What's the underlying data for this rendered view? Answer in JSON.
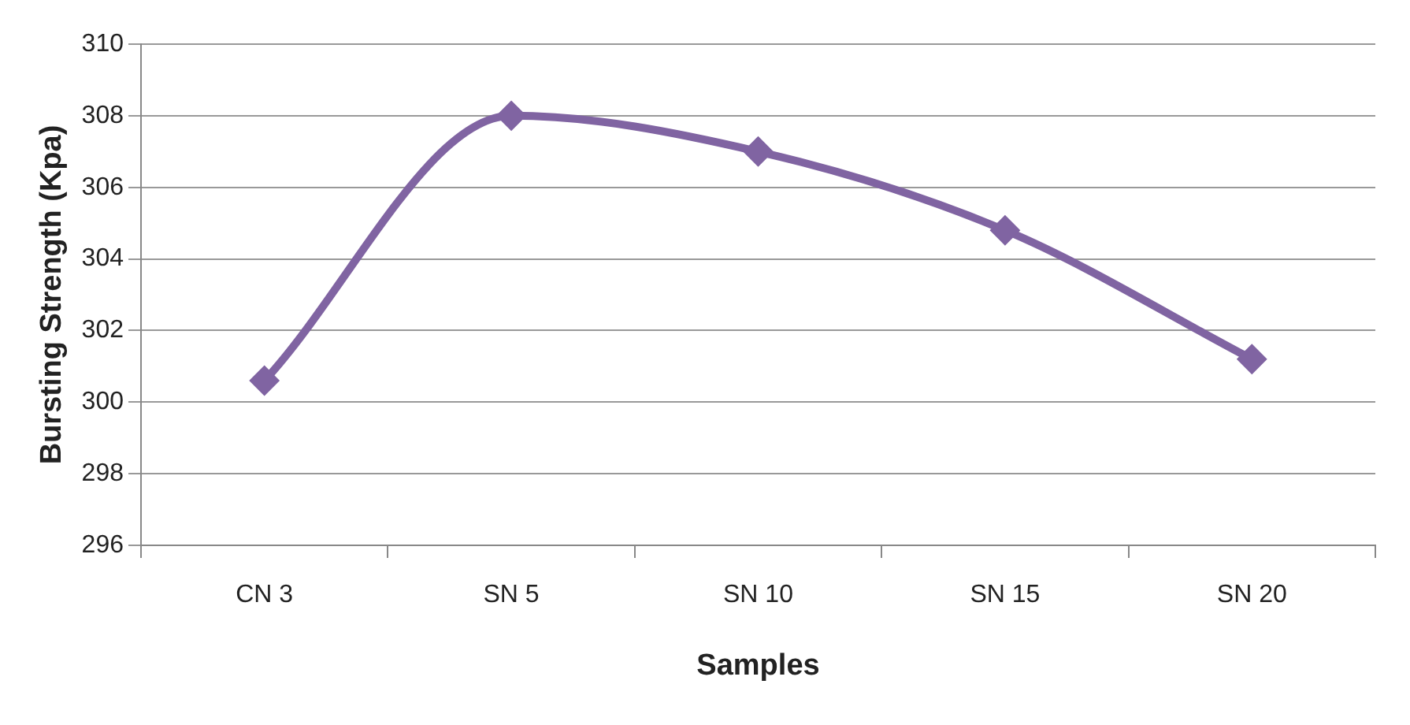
{
  "chart_data": {
    "type": "line",
    "xlabel": "Samples",
    "ylabel": "Bursting Strength (Kpa)",
    "categories": [
      "CN 3",
      "SN 5",
      "SN 10",
      "SN 15",
      "SN 20"
    ],
    "series": [
      {
        "color": "#8064a2",
        "values": [
          300.6,
          308,
          307,
          304.8,
          301.2
        ]
      }
    ],
    "ylim": [
      296,
      310
    ],
    "yticks": [
      296,
      298,
      300,
      302,
      304,
      306,
      308,
      310
    ],
    "grid": "y",
    "legend": false,
    "marker": "diamond",
    "line_style": "solid"
  }
}
